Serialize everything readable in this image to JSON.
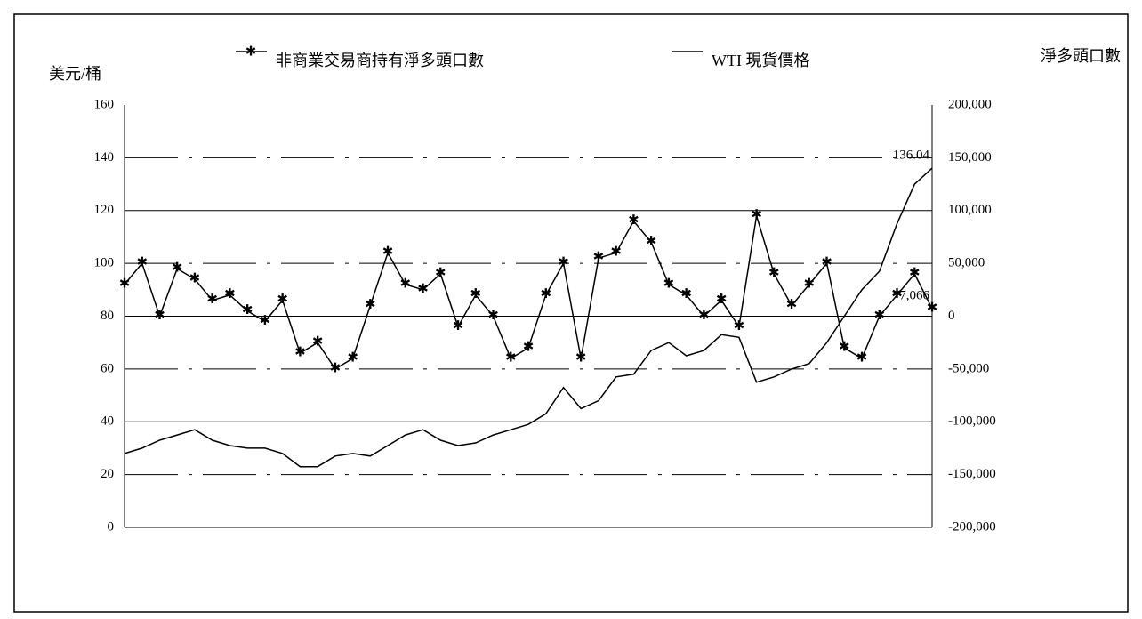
{
  "chart_data": {
    "type": "line",
    "y_label": "美元/桶",
    "y2_label": "淨多頭口數",
    "ylim": [
      0,
      160
    ],
    "yticks": [
      0,
      20,
      40,
      60,
      80,
      100,
      120,
      140,
      160
    ],
    "y2lim": [
      -200000,
      200000
    ],
    "y2ticks": [
      {
        "value": -200000,
        "label": "-200,000"
      },
      {
        "value": -150000,
        "label": "-150,000"
      },
      {
        "value": -100000,
        "label": "-100,000"
      },
      {
        "value": -50000,
        "label": "-50,000"
      },
      0,
      {
        "value": 50000,
        "label": "50,000"
      },
      {
        "value": 100000,
        "label": "100,000"
      },
      {
        "value": 150000,
        "label": "150,000"
      },
      {
        "value": 200000,
        "label": "200,000"
      }
    ],
    "grid": true,
    "categories": [
      null,
      null,
      null,
      null,
      null,
      null,
      null,
      null,
      null,
      null,
      null,
      null,
      null,
      null,
      null,
      null,
      null,
      null,
      null,
      null,
      null,
      null,
      null,
      null,
      null,
      null,
      null,
      null,
      null,
      null,
      null,
      null,
      null,
      null,
      null,
      null,
      null,
      null,
      null,
      null,
      null,
      null,
      null,
      null,
      null,
      null,
      null
    ],
    "series": [
      {
        "name": "非商業交易商持有淨多頭口數",
        "color": "#000000",
        "axis": "y2",
        "marker": "star",
        "values": [
          30000,
          50000,
          0,
          45000,
          35000,
          15000,
          20000,
          5000,
          -5000,
          15000,
          -35000,
          -25000,
          -50000,
          -40000,
          10000,
          60000,
          30000,
          25000,
          40000,
          -10000,
          20000,
          0,
          -40000,
          -30000,
          20000,
          50000,
          -40000,
          55000,
          60000,
          90000,
          70000,
          30000,
          20000,
          0,
          15000,
          -10000,
          95000,
          40000,
          10000,
          30000,
          50000,
          -30000,
          -40000,
          0,
          20000,
          40000,
          7066
        ],
        "value_labels": {
          "46": "7,066"
        }
      },
      {
        "name": "WTI 現貨價格",
        "color": "#000000",
        "axis": "y",
        "values": [
          28,
          30,
          33,
          35,
          37,
          33,
          31,
          30,
          30,
          28,
          23,
          23,
          27,
          28,
          27,
          31,
          35,
          37,
          33,
          31,
          32,
          35,
          37,
          39,
          43,
          53,
          45,
          48,
          57,
          58,
          67,
          70,
          65,
          67,
          73,
          72,
          55,
          57,
          60,
          62,
          70,
          80,
          90,
          97,
          115,
          130,
          136.04
        ],
        "value_labels": {
          "46": "136.04"
        }
      }
    ]
  }
}
